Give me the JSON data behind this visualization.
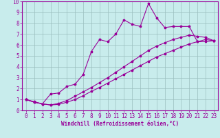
{
  "xlabel": "Windchill (Refroidissement éolien,°C)",
  "ylabel": "",
  "xlim": [
    -0.5,
    23.5
  ],
  "ylim": [
    0,
    10
  ],
  "bg_color": "#c8ecec",
  "line_color": "#990099",
  "grid_color": "#9bbfbf",
  "line1_x": [
    0,
    1,
    2,
    3,
    4,
    5,
    6,
    7,
    8,
    9,
    10,
    11,
    12,
    13,
    14,
    15,
    16,
    17,
    18,
    19,
    20,
    21,
    22,
    23
  ],
  "line1_y": [
    1.0,
    0.75,
    0.6,
    0.5,
    0.55,
    0.75,
    1.0,
    1.35,
    1.75,
    2.1,
    2.5,
    2.9,
    3.3,
    3.7,
    4.1,
    4.5,
    4.9,
    5.2,
    5.5,
    5.8,
    6.1,
    6.3,
    6.5,
    6.4
  ],
  "line2_x": [
    0,
    1,
    2,
    3,
    4,
    5,
    6,
    7,
    8,
    9,
    10,
    11,
    12,
    13,
    14,
    15,
    16,
    17,
    18,
    19,
    20,
    21,
    22,
    23
  ],
  "line2_y": [
    1.0,
    0.75,
    0.6,
    0.5,
    0.65,
    0.9,
    1.3,
    1.7,
    2.1,
    2.55,
    3.0,
    3.5,
    4.0,
    4.5,
    5.0,
    5.5,
    5.9,
    6.2,
    6.5,
    6.7,
    6.9,
    6.8,
    6.7,
    6.4
  ],
  "line3_x": [
    0,
    1,
    2,
    3,
    4,
    5,
    6,
    7,
    8,
    9,
    10,
    11,
    12,
    13,
    14,
    15,
    16,
    17,
    18,
    19,
    20,
    21,
    22,
    23
  ],
  "line3_y": [
    1.0,
    0.8,
    0.6,
    1.5,
    1.6,
    2.2,
    2.4,
    3.3,
    5.4,
    6.5,
    6.3,
    7.0,
    8.3,
    7.9,
    7.7,
    9.8,
    8.5,
    7.6,
    7.7,
    7.7,
    7.7,
    6.3,
    6.3,
    6.4
  ],
  "xticks": [
    0,
    1,
    2,
    3,
    4,
    5,
    6,
    7,
    8,
    9,
    10,
    11,
    12,
    13,
    14,
    15,
    16,
    17,
    18,
    19,
    20,
    21,
    22,
    23
  ],
  "yticks": [
    0,
    1,
    2,
    3,
    4,
    5,
    6,
    7,
    8,
    9,
    10
  ],
  "tick_fontsize": 5.5,
  "xlabel_fontsize": 5.5,
  "marker_size": 2.5,
  "line_width": 0.8
}
